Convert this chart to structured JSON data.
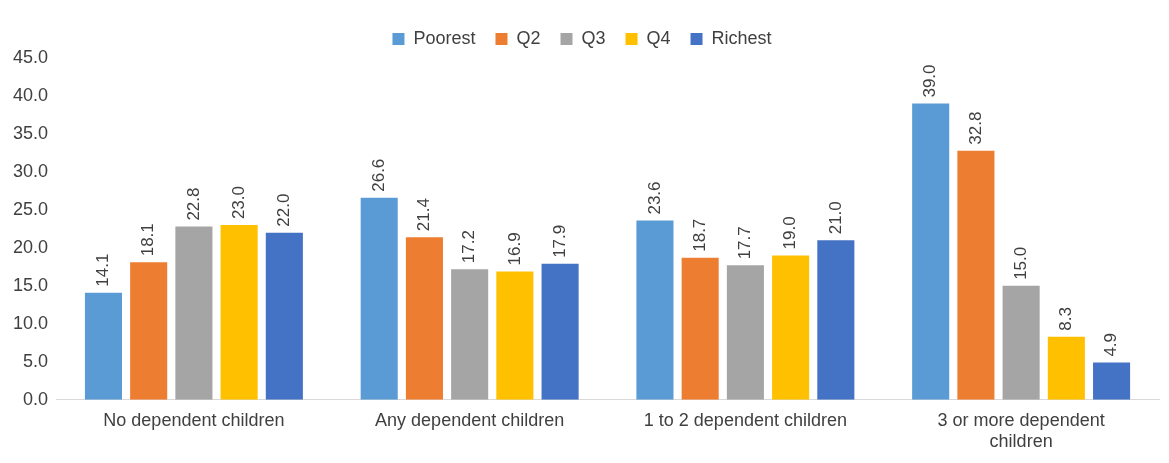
{
  "chart_data": {
    "type": "bar",
    "categories": [
      "No dependent children",
      "Any dependent children",
      "1 to 2 dependent children",
      "3 or more dependent children"
    ],
    "series": [
      {
        "name": "Poorest",
        "color": "#5b9bd5",
        "values": [
          14.1,
          26.6,
          23.6,
          39.0
        ],
        "value_labels": [
          "14.1",
          "26.6",
          "23.6",
          "39.0"
        ]
      },
      {
        "name": "Q2",
        "color": "#ed7d31",
        "values": [
          18.1,
          21.4,
          18.7,
          32.8
        ],
        "value_labels": [
          "18.1",
          "21.4",
          "18.7",
          "32.8"
        ]
      },
      {
        "name": "Q3",
        "color": "#a5a5a5",
        "values": [
          22.8,
          17.2,
          17.7,
          15.0
        ],
        "value_labels": [
          "22.8",
          "17.2",
          "17.7",
          "15.0"
        ]
      },
      {
        "name": "Q4",
        "color": "#ffc000",
        "values": [
          23.0,
          16.9,
          19.0,
          8.3
        ],
        "value_labels": [
          "23.0",
          "16.9",
          "19.0",
          "8.3"
        ]
      },
      {
        "name": "Richest",
        "color": "#4472c4",
        "values": [
          22.0,
          17.9,
          21.0,
          4.9
        ],
        "value_labels": [
          "22.0",
          "17.9",
          "21.0",
          "4.9"
        ]
      }
    ],
    "ylim": [
      0,
      45
    ],
    "yticks": [
      {
        "value": 0,
        "label": "0.0"
      },
      {
        "value": 5,
        "label": "5.0"
      },
      {
        "value": 10,
        "label": "10.0"
      },
      {
        "value": 15,
        "label": "15.0"
      },
      {
        "value": 20,
        "label": "20.0"
      },
      {
        "value": 25,
        "label": "25.0"
      },
      {
        "value": 30,
        "label": "30.0"
      },
      {
        "value": 35,
        "label": "35.0"
      },
      {
        "value": 40,
        "label": "40.0"
      },
      {
        "value": 45,
        "label": "45.0"
      }
    ],
    "grid": false,
    "legend": "top"
  }
}
